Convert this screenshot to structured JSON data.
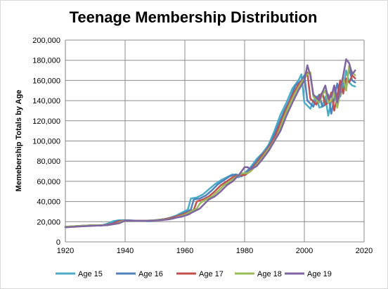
{
  "chart_data": {
    "type": "line",
    "title": "Teenage Membership Distribution",
    "xlabel": "",
    "ylabel": "Memebership Totals by Age",
    "xlim": [
      1920,
      2020
    ],
    "ylim": [
      0,
      200000
    ],
    "x_ticks": [
      "1920",
      "1940",
      "1960",
      "1980",
      "2000",
      "2020"
    ],
    "y_ticks": [
      "0",
      "20,000",
      "40,000",
      "60,000",
      "80,000",
      "100,000",
      "120,000",
      "140,000",
      "160,000",
      "180,000",
      "200,000"
    ],
    "grid": true,
    "legend_position": "bottom",
    "series": [
      {
        "name": "Age 15",
        "color": "#4bacc6",
        "points": [
          [
            1920,
            14500
          ],
          [
            1923,
            15500
          ],
          [
            1926,
            16000
          ],
          [
            1929,
            16500
          ],
          [
            1932,
            16000
          ],
          [
            1934,
            18000
          ],
          [
            1936,
            20500
          ],
          [
            1938,
            21500
          ],
          [
            1940,
            21500
          ],
          [
            1942,
            21000
          ],
          [
            1945,
            21000
          ],
          [
            1948,
            20500
          ],
          [
            1950,
            21500
          ],
          [
            1953,
            22500
          ],
          [
            1955,
            24000
          ],
          [
            1957,
            26000
          ],
          [
            1959,
            29000
          ],
          [
            1961,
            32000
          ],
          [
            1962,
            43000
          ],
          [
            1964,
            44000
          ],
          [
            1966,
            47000
          ],
          [
            1968,
            52000
          ],
          [
            1970,
            57000
          ],
          [
            1972,
            61000
          ],
          [
            1974,
            64000
          ],
          [
            1976,
            67000
          ],
          [
            1978,
            64000
          ],
          [
            1979,
            66000
          ],
          [
            1980,
            68000
          ],
          [
            1982,
            74000
          ],
          [
            1984,
            82000
          ],
          [
            1986,
            88000
          ],
          [
            1988,
            96000
          ],
          [
            1990,
            110000
          ],
          [
            1992,
            126000
          ],
          [
            1994,
            138000
          ],
          [
            1996,
            152000
          ],
          [
            1998,
            160000
          ],
          [
            1999,
            166000
          ],
          [
            2000,
            138000
          ],
          [
            2001,
            135000
          ],
          [
            2002,
            132000
          ],
          [
            2003,
            140000
          ],
          [
            2004,
            144000
          ],
          [
            2005,
            133000
          ],
          [
            2006,
            134000
          ],
          [
            2007,
            144000
          ],
          [
            2008,
            125000
          ],
          [
            2009,
            140000
          ],
          [
            2010,
            155000
          ],
          [
            2011,
            142000
          ],
          [
            2012,
            158000
          ],
          [
            2013,
            152000
          ],
          [
            2014,
            170000
          ],
          [
            2015,
            158000
          ],
          [
            2016,
            155000
          ],
          [
            2017,
            154000
          ]
        ]
      },
      {
        "name": "Age 16",
        "color": "#4f81bd",
        "points": [
          [
            1920,
            15000
          ],
          [
            1923,
            15500
          ],
          [
            1926,
            16000
          ],
          [
            1929,
            16500
          ],
          [
            1932,
            16500
          ],
          [
            1935,
            17500
          ],
          [
            1937,
            20500
          ],
          [
            1939,
            21000
          ],
          [
            1941,
            21500
          ],
          [
            1944,
            21000
          ],
          [
            1947,
            21000
          ],
          [
            1950,
            21500
          ],
          [
            1953,
            22500
          ],
          [
            1956,
            24000
          ],
          [
            1958,
            26500
          ],
          [
            1960,
            29000
          ],
          [
            1962,
            32000
          ],
          [
            1963,
            42000
          ],
          [
            1965,
            43000
          ],
          [
            1967,
            46000
          ],
          [
            1969,
            51000
          ],
          [
            1971,
            57000
          ],
          [
            1973,
            61000
          ],
          [
            1975,
            65000
          ],
          [
            1977,
            67000
          ],
          [
            1979,
            65000
          ],
          [
            1980,
            67000
          ],
          [
            1981,
            70000
          ],
          [
            1983,
            76000
          ],
          [
            1985,
            84000
          ],
          [
            1987,
            90000
          ],
          [
            1989,
            100000
          ],
          [
            1991,
            114000
          ],
          [
            1993,
            128000
          ],
          [
            1995,
            140000
          ],
          [
            1997,
            155000
          ],
          [
            1999,
            160000
          ],
          [
            2000,
            165000
          ],
          [
            2001,
            140000
          ],
          [
            2002,
            137000
          ],
          [
            2003,
            134000
          ],
          [
            2004,
            142000
          ],
          [
            2005,
            146000
          ],
          [
            2006,
            134000
          ],
          [
            2007,
            136000
          ],
          [
            2008,
            146000
          ],
          [
            2009,
            127000
          ],
          [
            2010,
            142000
          ],
          [
            2011,
            157000
          ],
          [
            2012,
            144000
          ],
          [
            2013,
            160000
          ],
          [
            2014,
            154000
          ],
          [
            2015,
            172000
          ],
          [
            2016,
            160000
          ],
          [
            2017,
            158000
          ]
        ]
      },
      {
        "name": "Age 17",
        "color": "#c0504d",
        "points": [
          [
            1920,
            15000
          ],
          [
            1923,
            15500
          ],
          [
            1926,
            16000
          ],
          [
            1929,
            16500
          ],
          [
            1933,
            16500
          ],
          [
            1936,
            18000
          ],
          [
            1938,
            20500
          ],
          [
            1940,
            21000
          ],
          [
            1943,
            21000
          ],
          [
            1946,
            21000
          ],
          [
            1949,
            21000
          ],
          [
            1952,
            22000
          ],
          [
            1955,
            23500
          ],
          [
            1957,
            25000
          ],
          [
            1959,
            27000
          ],
          [
            1961,
            29000
          ],
          [
            1963,
            32000
          ],
          [
            1964,
            40000
          ],
          [
            1966,
            42000
          ],
          [
            1968,
            45000
          ],
          [
            1970,
            50000
          ],
          [
            1972,
            56000
          ],
          [
            1974,
            60000
          ],
          [
            1976,
            64000
          ],
          [
            1978,
            66000
          ],
          [
            1980,
            66000
          ],
          [
            1981,
            68000
          ],
          [
            1982,
            71000
          ],
          [
            1984,
            78000
          ],
          [
            1986,
            86000
          ],
          [
            1988,
            93000
          ],
          [
            1990,
            103000
          ],
          [
            1992,
            118000
          ],
          [
            1994,
            132000
          ],
          [
            1996,
            145000
          ],
          [
            1998,
            156000
          ],
          [
            2000,
            162000
          ],
          [
            2001,
            168000
          ],
          [
            2002,
            142000
          ],
          [
            2003,
            139000
          ],
          [
            2004,
            136000
          ],
          [
            2005,
            144000
          ],
          [
            2006,
            148000
          ],
          [
            2007,
            136000
          ],
          [
            2008,
            138000
          ],
          [
            2009,
            148000
          ],
          [
            2010,
            130000
          ],
          [
            2011,
            145000
          ],
          [
            2012,
            160000
          ],
          [
            2013,
            147000
          ],
          [
            2014,
            162000
          ],
          [
            2015,
            158000
          ],
          [
            2016,
            165000
          ],
          [
            2017,
            162000
          ]
        ]
      },
      {
        "name": "Age 18",
        "color": "#9bbb59",
        "points": [
          [
            1920,
            15000
          ],
          [
            1923,
            15500
          ],
          [
            1926,
            16000
          ],
          [
            1930,
            16500
          ],
          [
            1934,
            16500
          ],
          [
            1937,
            18000
          ],
          [
            1939,
            20500
          ],
          [
            1941,
            21000
          ],
          [
            1944,
            21000
          ],
          [
            1947,
            21000
          ],
          [
            1950,
            21500
          ],
          [
            1953,
            22000
          ],
          [
            1956,
            23000
          ],
          [
            1958,
            25000
          ],
          [
            1960,
            27000
          ],
          [
            1962,
            30000
          ],
          [
            1964,
            33000
          ],
          [
            1965,
            38000
          ],
          [
            1967,
            42000
          ],
          [
            1969,
            45000
          ],
          [
            1971,
            50000
          ],
          [
            1973,
            56000
          ],
          [
            1975,
            60000
          ],
          [
            1977,
            64000
          ],
          [
            1979,
            68000
          ],
          [
            1981,
            68000
          ],
          [
            1982,
            70000
          ],
          [
            1983,
            73000
          ],
          [
            1985,
            80000
          ],
          [
            1987,
            88000
          ],
          [
            1989,
            96000
          ],
          [
            1991,
            106000
          ],
          [
            1993,
            122000
          ],
          [
            1995,
            136000
          ],
          [
            1997,
            148000
          ],
          [
            1999,
            158000
          ],
          [
            2001,
            166000
          ],
          [
            2002,
            168000
          ],
          [
            2003,
            144000
          ],
          [
            2004,
            141000
          ],
          [
            2005,
            138000
          ],
          [
            2006,
            146000
          ],
          [
            2007,
            150000
          ],
          [
            2008,
            138000
          ],
          [
            2009,
            140000
          ],
          [
            2010,
            150000
          ],
          [
            2011,
            133000
          ],
          [
            2012,
            148000
          ],
          [
            2013,
            163000
          ],
          [
            2014,
            150000
          ],
          [
            2015,
            175000
          ],
          [
            2016,
            168000
          ],
          [
            2017,
            165000
          ]
        ]
      },
      {
        "name": "Age 19",
        "color": "#8064a2",
        "points": [
          [
            1920,
            14500
          ],
          [
            1923,
            15000
          ],
          [
            1926,
            15500
          ],
          [
            1930,
            16000
          ],
          [
            1934,
            16500
          ],
          [
            1938,
            18500
          ],
          [
            1940,
            21000
          ],
          [
            1943,
            21000
          ],
          [
            1946,
            21000
          ],
          [
            1949,
            21000
          ],
          [
            1952,
            21500
          ],
          [
            1955,
            22500
          ],
          [
            1957,
            24000
          ],
          [
            1959,
            25000
          ],
          [
            1961,
            27000
          ],
          [
            1963,
            30000
          ],
          [
            1965,
            33000
          ],
          [
            1966,
            36000
          ],
          [
            1968,
            42000
          ],
          [
            1970,
            45000
          ],
          [
            1972,
            50000
          ],
          [
            1974,
            56000
          ],
          [
            1976,
            60000
          ],
          [
            1978,
            66000
          ],
          [
            1980,
            74000
          ],
          [
            1981,
            74000
          ],
          [
            1982,
            72000
          ],
          [
            1984,
            75000
          ],
          [
            1986,
            82000
          ],
          [
            1988,
            90000
          ],
          [
            1990,
            100000
          ],
          [
            1992,
            110000
          ],
          [
            1994,
            125000
          ],
          [
            1996,
            138000
          ],
          [
            1998,
            150000
          ],
          [
            2000,
            160000
          ],
          [
            2001,
            175000
          ],
          [
            2002,
            165000
          ],
          [
            2003,
            146000
          ],
          [
            2004,
            143000
          ],
          [
            2005,
            140000
          ],
          [
            2006,
            148000
          ],
          [
            2007,
            155000
          ],
          [
            2008,
            142000
          ],
          [
            2009,
            144000
          ],
          [
            2010,
            155000
          ],
          [
            2011,
            138000
          ],
          [
            2012,
            150000
          ],
          [
            2013,
            165000
          ],
          [
            2014,
            181000
          ],
          [
            2015,
            177000
          ],
          [
            2016,
            166000
          ],
          [
            2017,
            170000
          ]
        ]
      }
    ]
  }
}
